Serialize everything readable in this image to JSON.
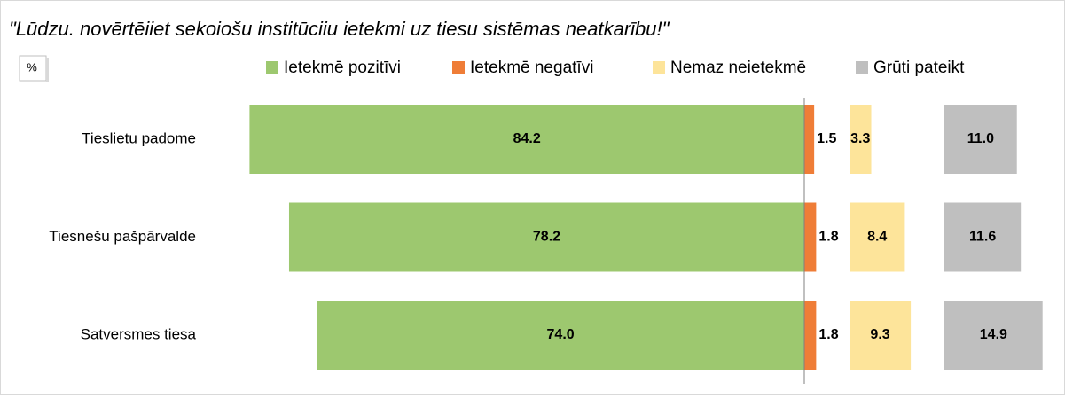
{
  "chart_data": {
    "type": "bar",
    "title": "\"Lūdzu. novērtēiiet sekoiošu institūciiu ietekmi uz tiesu sistēmas neatkarību!\"",
    "unit": "%",
    "categories": [
      "Tieslietu padome",
      "Tiesnešu pašpārvalde",
      "Satversmes tiesa"
    ],
    "series": [
      {
        "name": "Ietekmē pozitīvi",
        "color": "#9dc86f",
        "values": [
          84.2,
          78.2,
          74.0
        ],
        "value_labels": [
          "84.2",
          "78.2",
          "74.0"
        ]
      },
      {
        "name": "Ietekmē negatīvi",
        "color": "#ef7d37",
        "values": [
          1.5,
          1.8,
          1.8
        ],
        "value_labels": [
          "1.5",
          "1.8",
          "1.8"
        ]
      },
      {
        "name": "Nemaz neietekmē",
        "color": "#fde49a",
        "values": [
          3.3,
          8.4,
          9.3
        ],
        "value_labels": [
          "3.3",
          "8.4",
          "9.3"
        ]
      },
      {
        "name": "Grūti pateikt",
        "color": "#bfbfbf",
        "values": [
          11.0,
          11.6,
          14.9
        ],
        "value_labels": [
          "11.0",
          "11.6",
          "14.9"
        ]
      }
    ]
  }
}
